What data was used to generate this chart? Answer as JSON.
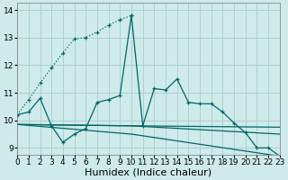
{
  "xlabel": "Humidex (Indice chaleur)",
  "bg_color": "#ceeaea",
  "grid_color": "#afd0d0",
  "line_color": "#006666",
  "xlim": [
    0,
    23
  ],
  "ylim": [
    8.75,
    14.25
  ],
  "yticks": [
    9,
    10,
    11,
    12,
    13,
    14
  ],
  "xticks": [
    0,
    1,
    2,
    3,
    4,
    5,
    6,
    7,
    8,
    9,
    10,
    11,
    12,
    13,
    14,
    15,
    16,
    17,
    18,
    19,
    20,
    21,
    22,
    23
  ],
  "tick_fontsize": 6.5,
  "label_fontsize": 8,
  "series1_x": [
    0,
    1,
    2,
    3,
    4,
    5,
    6,
    7,
    8,
    9,
    10,
    11,
    12,
    13,
    14,
    15,
    16,
    17,
    18,
    19,
    20,
    21,
    22,
    23
  ],
  "series1_y": [
    10.2,
    10.3,
    10.8,
    9.8,
    9.2,
    9.5,
    9.7,
    10.65,
    10.75,
    10.9,
    13.8,
    9.8,
    11.15,
    11.1,
    11.5,
    10.65,
    10.6,
    10.6,
    10.3,
    9.9,
    9.55,
    9.0,
    9.0,
    8.7
  ],
  "series2_x": [
    0,
    1,
    2,
    3,
    4,
    5,
    6,
    7,
    8,
    9,
    10
  ],
  "series2_y": [
    10.2,
    10.75,
    11.35,
    11.9,
    12.45,
    12.95,
    13.0,
    13.2,
    13.45,
    13.65,
    13.8
  ],
  "line3_x": [
    0,
    10,
    23
  ],
  "line3_y": [
    9.85,
    9.8,
    9.75
  ],
  "line4_x": [
    0,
    10,
    23
  ],
  "line4_y": [
    9.85,
    9.8,
    9.5
  ],
  "line5_x": [
    0,
    10,
    23
  ],
  "line5_y": [
    9.85,
    9.5,
    8.7
  ]
}
